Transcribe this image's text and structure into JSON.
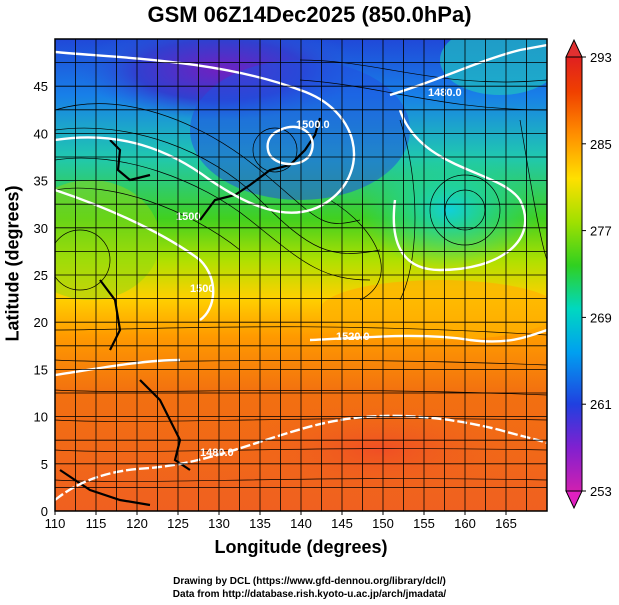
{
  "title": "GSM 06Z14Dec2025 (850.0hPa)",
  "x_axis_label": "Longitude (degrees)",
  "y_axis_label": "Latitude  (degrees)",
  "credit_line_1": "Drawing by DCL (https://www.gfd-dennou.org/library/dcl/)",
  "credit_line_2": "Data from http://database.rish.kyoto-u.ac.jp/arch/jmadata/",
  "x_ticks": [
    "110",
    "115",
    "120",
    "125",
    "130",
    "135",
    "140",
    "145",
    "150",
    "155",
    "160",
    "165"
  ],
  "y_ticks": [
    "0",
    "5",
    "10",
    "15",
    "20",
    "25",
    "30",
    "35",
    "40",
    "45"
  ],
  "colorbar": {
    "tick_labels": [
      "293",
      "285",
      "277",
      "269",
      "261",
      "253"
    ],
    "min": 253,
    "max": 293,
    "colors": [
      "#d020b0",
      "#8020d0",
      "#2040e0",
      "#00a0f0",
      "#00d8c0",
      "#30d020",
      "#a0e000",
      "#ffe000",
      "#ff9000",
      "#f04000",
      "#e02020"
    ]
  },
  "contour_labels": [
    "1480.0",
    "1500.0",
    "1500",
    "1500",
    "1520.0",
    "1480.0"
  ],
  "map": {
    "lon_range": [
      110,
      170
    ],
    "lat_range": [
      0,
      50
    ],
    "quantity": "temperature (K) at 850.0hPa with geopotential height contours and streamlines"
  }
}
